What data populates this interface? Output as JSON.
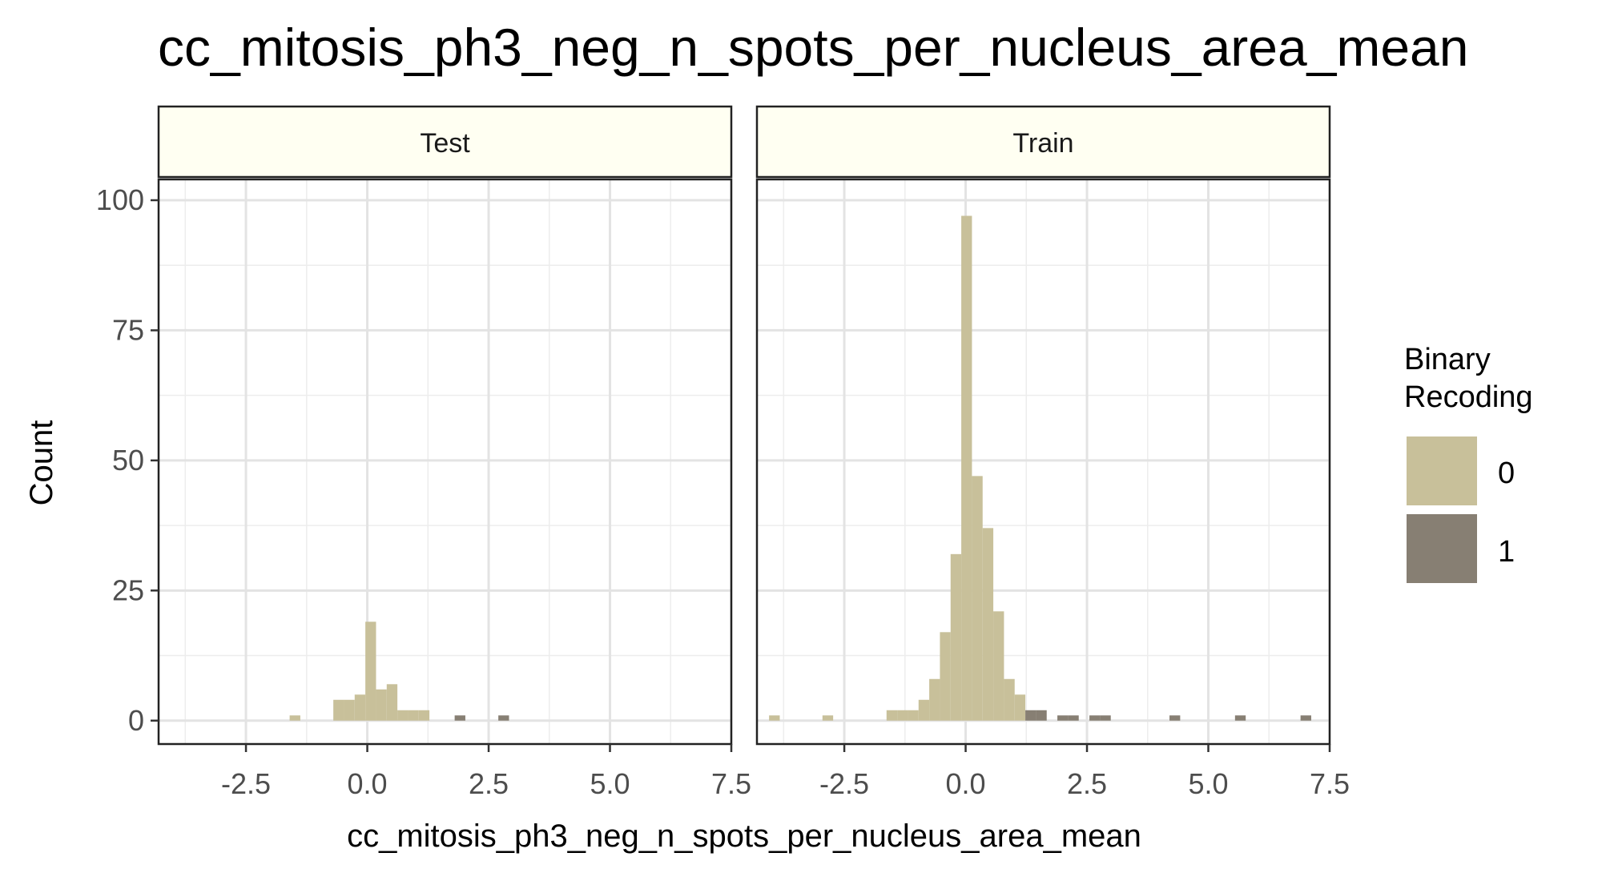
{
  "chart_data": {
    "type": "bar",
    "title": "cc_mitosis_ph3_neg_n_spots_per_nucleus_area_mean",
    "xlabel": "cc_mitosis_ph3_neg_n_spots_per_nucleus_area_mean",
    "ylabel": "Count",
    "xlim": [
      -4.3,
      7.5
    ],
    "ylim": [
      -4.5,
      104
    ],
    "x_ticks": [
      -2.5,
      0.0,
      2.5,
      5.0,
      7.5
    ],
    "x_tick_labels": [
      "-2.5",
      "0.0",
      "2.5",
      "5.0",
      "7.5"
    ],
    "y_ticks": [
      0,
      25,
      50,
      75,
      100
    ],
    "y_tick_labels": [
      "0",
      "25",
      "50",
      "75",
      "100"
    ],
    "grid": true,
    "bin_width": 0.22,
    "legend": {
      "title_lines": [
        "Binary",
        "Recoding"
      ],
      "placement": "right",
      "entries": [
        {
          "label": "0",
          "color": "#c8c09a"
        },
        {
          "label": "1",
          "color": "#877f73"
        }
      ]
    },
    "panels": [
      {
        "strip": "Test",
        "series": [
          {
            "name": "0",
            "color": "#c8c09a",
            "bars": [
              [
                -1.6,
                1
              ],
              [
                -0.7,
                4
              ],
              [
                -0.48,
                4
              ],
              [
                -0.26,
                5
              ],
              [
                -0.04,
                19
              ],
              [
                0.18,
                6
              ],
              [
                0.4,
                7
              ],
              [
                0.62,
                2
              ],
              [
                0.84,
                2
              ],
              [
                1.06,
                2
              ]
            ]
          },
          {
            "name": "1",
            "color": "#877f73",
            "bars": [
              [
                1.8,
                1
              ],
              [
                2.7,
                1
              ]
            ]
          }
        ]
      },
      {
        "strip": "Train",
        "series": [
          {
            "name": "0",
            "color": "#c8c09a",
            "bars": [
              [
                -4.05,
                1
              ],
              [
                -2.95,
                1
              ],
              [
                -1.63,
                2
              ],
              [
                -1.41,
                2
              ],
              [
                -1.19,
                2
              ],
              [
                -0.97,
                4
              ],
              [
                -0.75,
                8
              ],
              [
                -0.53,
                17
              ],
              [
                -0.31,
                32
              ],
              [
                -0.09,
                97
              ],
              [
                0.13,
                47
              ],
              [
                0.35,
                37
              ],
              [
                0.57,
                21
              ],
              [
                0.79,
                8
              ],
              [
                1.01,
                5
              ]
            ]
          },
          {
            "name": "1",
            "color": "#877f73",
            "bars": [
              [
                1.23,
                2
              ],
              [
                1.45,
                2
              ],
              [
                1.89,
                1
              ],
              [
                2.11,
                1
              ],
              [
                2.55,
                1
              ],
              [
                2.77,
                1
              ],
              [
                4.2,
                1
              ],
              [
                5.55,
                1
              ],
              [
                6.9,
                1
              ]
            ]
          }
        ]
      }
    ]
  }
}
